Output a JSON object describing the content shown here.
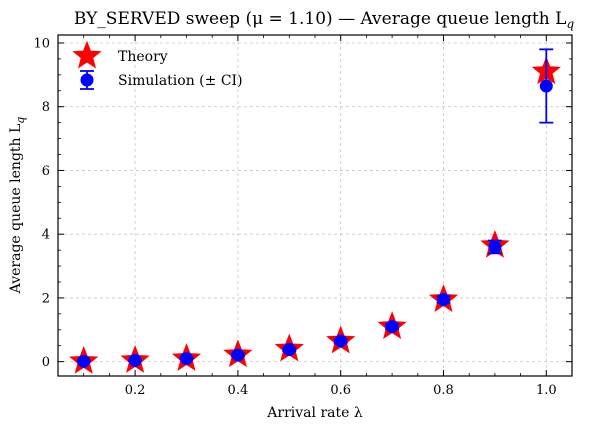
{
  "chart_data": {
    "type": "scatter",
    "title": "BY_SERVED sweep (μ = 1.10) — Average queue length L",
    "title_subscript": "q",
    "xlabel": "Arrival rate λ",
    "ylabel": "Average queue length L",
    "ylabel_subscript": "q",
    "xlim": [
      0.05,
      1.05
    ],
    "ylim": [
      -0.45,
      10.25
    ],
    "x_ticks": [
      0.2,
      0.4,
      0.6,
      0.8,
      1.0
    ],
    "x_tick_labels": [
      "0.2",
      "0.4",
      "0.6",
      "0.8",
      "1.0"
    ],
    "y_ticks": [
      0,
      2,
      4,
      6,
      8,
      10
    ],
    "y_tick_labels": [
      "0",
      "2",
      "4",
      "6",
      "8",
      "10"
    ],
    "grid": true,
    "legend_position": "top-left",
    "x": [
      0.1,
      0.2,
      0.3,
      0.4,
      0.5,
      0.6,
      0.7,
      0.8,
      0.9,
      1.0
    ],
    "series": [
      {
        "name": "Theory",
        "marker": "star",
        "color": "#ff0000",
        "values": [
          0.01,
          0.04,
          0.1,
          0.22,
          0.4,
          0.65,
          1.1,
          1.95,
          3.65,
          9.1
        ]
      },
      {
        "name": "Simulation (± CI)",
        "marker": "circle",
        "color": "#0000ff",
        "values": [
          0.01,
          0.04,
          0.1,
          0.21,
          0.38,
          0.65,
          1.1,
          1.95,
          3.6,
          8.65
        ],
        "ci_low": [
          0.0,
          0.02,
          0.07,
          0.17,
          0.33,
          0.59,
          1.02,
          1.85,
          3.4,
          7.5
        ],
        "ci_high": [
          0.02,
          0.06,
          0.13,
          0.25,
          0.43,
          0.71,
          1.18,
          2.05,
          3.8,
          9.8
        ]
      }
    ]
  }
}
